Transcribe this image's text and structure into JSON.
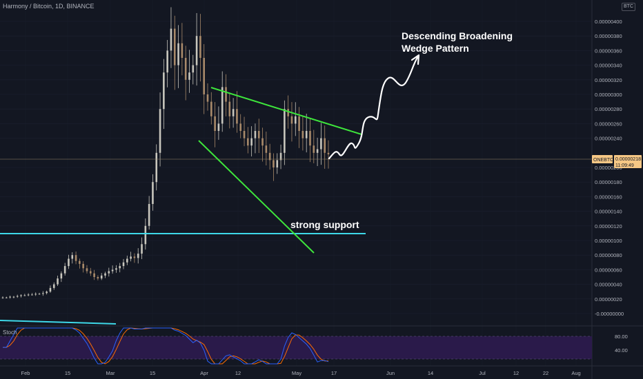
{
  "header": {
    "title": "Harmony / Bitcoin, 1D, BINANCE",
    "currency_badge": "BTC"
  },
  "price_tag": {
    "symbol": "ONEBTC",
    "price": "0.00000218",
    "countdown": "11:09:49"
  },
  "oscillator": {
    "label": "Stoch",
    "levels": [
      "80.00",
      "40.00"
    ]
  },
  "annotations": {
    "pattern": [
      "Descending Broadening",
      "Wedge Pattern"
    ],
    "support": "strong support"
  },
  "colors": {
    "background": "#131722",
    "up_candle": "#c8c6bd",
    "down_candle": "#a98a6a",
    "wedge_lines": "#3ee63c",
    "support_line": "#3ed8e8",
    "projection": "#ffffff",
    "price_tag": "#f5c785",
    "stoch_k": "#2962ff",
    "stoch_d": "#ff6d00",
    "stoch_band": "#2a1a4a"
  },
  "chart_data": {
    "type": "candlestick",
    "title": "Harmony / Bitcoin, 1D, BINANCE",
    "x_tick_labels": [
      "Feb",
      "15",
      "Mar",
      "15",
      "Apr",
      "12",
      "May",
      "17",
      "Jun",
      "14",
      "Jul",
      "12",
      "22",
      "Aug"
    ],
    "y_tick_labels": [
      "0.00000400",
      "0.00000380",
      "0.00000360",
      "0.00000340",
      "0.00000320",
      "0.00000300",
      "0.00000280",
      "0.00000260",
      "0.00000240",
      "0.00000200",
      "0.00000180",
      "0.00000160",
      "0.00000140",
      "0.00000120",
      "0.00000100",
      "0.00000080",
      "0.00000060",
      "0.00000040",
      "0.00000020",
      "-0.00000000"
    ],
    "ylim": [
      -1e-07,
      4.3e-06
    ],
    "last_price": 2.18e-06,
    "close_series_approx": [
      2.2e-07,
      2.2e-07,
      2.3e-07,
      2.3e-07,
      2.4e-07,
      2.5e-07,
      2.5e-07,
      2.6e-07,
      2.6e-07,
      2.7e-07,
      2.7e-07,
      2.8e-07,
      3e-07,
      3.5e-07,
      4e-07,
      4.8e-07,
      5.5e-07,
      6.5e-07,
      7.5e-07,
      8e-07,
      7.2e-07,
      6.8e-07,
      6.2e-07,
      5.8e-07,
      5.5e-07,
      5e-07,
      4.8e-07,
      5.2e-07,
      5.5e-07,
      5.8e-07,
      6e-07,
      6.2e-07,
      6.5e-07,
      7e-07,
      7.5e-07,
      7.8e-07,
      7.6e-07,
      8.2e-07,
      9.5e-07,
      1.2e-06,
      1.5e-06,
      1.8e-06,
      2.2e-06,
      2.8e-06,
      3.3e-06,
      3.6e-06,
      3.9e-06,
      3.4e-06,
      3.7e-06,
      3.5e-06,
      3.2e-06,
      3.3e-06,
      3.4e-06,
      3.8e-06,
      3.5e-06,
      3e-06,
      2.9e-06,
      2.7e-06,
      2.5e-06,
      2.6e-06,
      3.1e-06,
      2.9e-06,
      2.7e-06,
      2.8e-06,
      2.6e-06,
      2.5e-06,
      2.4e-06,
      2.3e-06,
      2.4e-06,
      2.5e-06,
      2.4e-06,
      2.3e-06,
      2.2e-06,
      2.1e-06,
      2e-06,
      2.1e-06,
      2.2e-06,
      2.8e-06,
      2.7e-06,
      2.6e-06,
      2.7e-06,
      2.5e-06,
      2.4e-06,
      2.5e-06,
      2.3e-06,
      2.2e-06,
      2.25e-06,
      2.4e-06,
      2.2e-06,
      2.18e-06
    ],
    "wedge_upper": [
      [
        3.2e-06,
        3.1e-06
      ],
      [
        2.5e-06,
        2.6e-06
      ]
    ],
    "wedge_lower": [
      [
        2.5e-06,
        2.4e-06
      ],
      [
        1.05e-06,
        8.6e-07
      ]
    ],
    "support_level": 1.15e-06
  }
}
